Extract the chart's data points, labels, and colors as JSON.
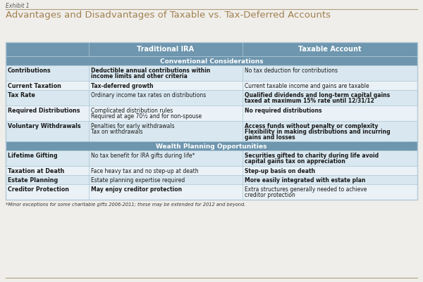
{
  "exhibit_label": "Exhibit 1",
  "title": "Advantages and Disadvantages of Taxable vs. Tax-Deferred Accounts",
  "col_headers": [
    "",
    "Traditional IRA",
    "Taxable Account"
  ],
  "section1_header": "Conventional Considerations",
  "section2_header": "Wealth Planning Opportunities",
  "rows_section1": [
    {
      "category": "Contributions",
      "ira": [
        "Deductible annual contributions within",
        "income limits and other criteria"
      ],
      "taxable": [
        "No tax deduction for contributions"
      ],
      "ira_bold": true,
      "taxable_bold": false
    },
    {
      "category": "Current Taxation",
      "ira": [
        "Tax-deferred growth"
      ],
      "taxable": [
        "Current taxable income and gains are taxable"
      ],
      "ira_bold": true,
      "taxable_bold": false
    },
    {
      "category": "Tax Rate",
      "ira": [
        "Ordinary income tax rates on distributions"
      ],
      "taxable": [
        "Qualified dividends and long-term capital gains",
        "taxed at maximum 15% rate until 12/31/12"
      ],
      "ira_bold": false,
      "taxable_bold": true
    },
    {
      "category": "Required Distributions",
      "ira": [
        "Complicated distribution rules",
        "Required at age 70½ and for non-spouse"
      ],
      "taxable": [
        "No required distributions"
      ],
      "ira_bold": false,
      "taxable_bold": true
    },
    {
      "category": "Voluntary Withdrawals",
      "ira": [
        "Penalties for early withdrawals",
        "Tax on withdrawals"
      ],
      "taxable": [
        "Access funds without penalty or complexity",
        "Flexibility in making distributions and incurring",
        "gains and losses"
      ],
      "ira_bold": false,
      "taxable_bold": true
    }
  ],
  "rows_section2": [
    {
      "category": "Lifetime Gifting",
      "ira": [
        "No tax benefit for IRA gifts during life*"
      ],
      "taxable": [
        "Securities gifted to charity during life avoid",
        "capital gains tax on appreciation"
      ],
      "ira_bold": false,
      "taxable_bold": true
    },
    {
      "category": "Taxation at Death",
      "ira": [
        "Face heavy tax and no step-up at death"
      ],
      "taxable": [
        "Step-up basis on death"
      ],
      "ira_bold": false,
      "taxable_bold": true
    },
    {
      "category": "Estate Planning",
      "ira": [
        "Estate planning expertise required"
      ],
      "taxable": [
        "More easily integrated with estate plan"
      ],
      "ira_bold": false,
      "taxable_bold": true
    },
    {
      "category": "Creditor Protection",
      "ira": [
        "May enjoy creditor protection"
      ],
      "taxable": [
        "Extra structures generally needed to achieve",
        "creditor protection"
      ],
      "ira_bold": true,
      "taxable_bold": false
    }
  ],
  "footnote": "*Minor exceptions for some charitable gifts 2006-2011; these may be extended for 2012 and beyond.",
  "header_bg": "#6e96ae",
  "row_odd_bg": "#d9e8f0",
  "row_even_bg": "#eaf2f7",
  "header_text_color": "#ffffff",
  "category_text_color": "#1a1a1a",
  "cell_text_color": "#1a1a1a",
  "title_color": "#a08050",
  "exhibit_color": "#555555",
  "border_color": "#b0c8d8",
  "fig_bg": "#f0eeea",
  "footnote_color": "#333333",
  "line_color": "#b0a080"
}
